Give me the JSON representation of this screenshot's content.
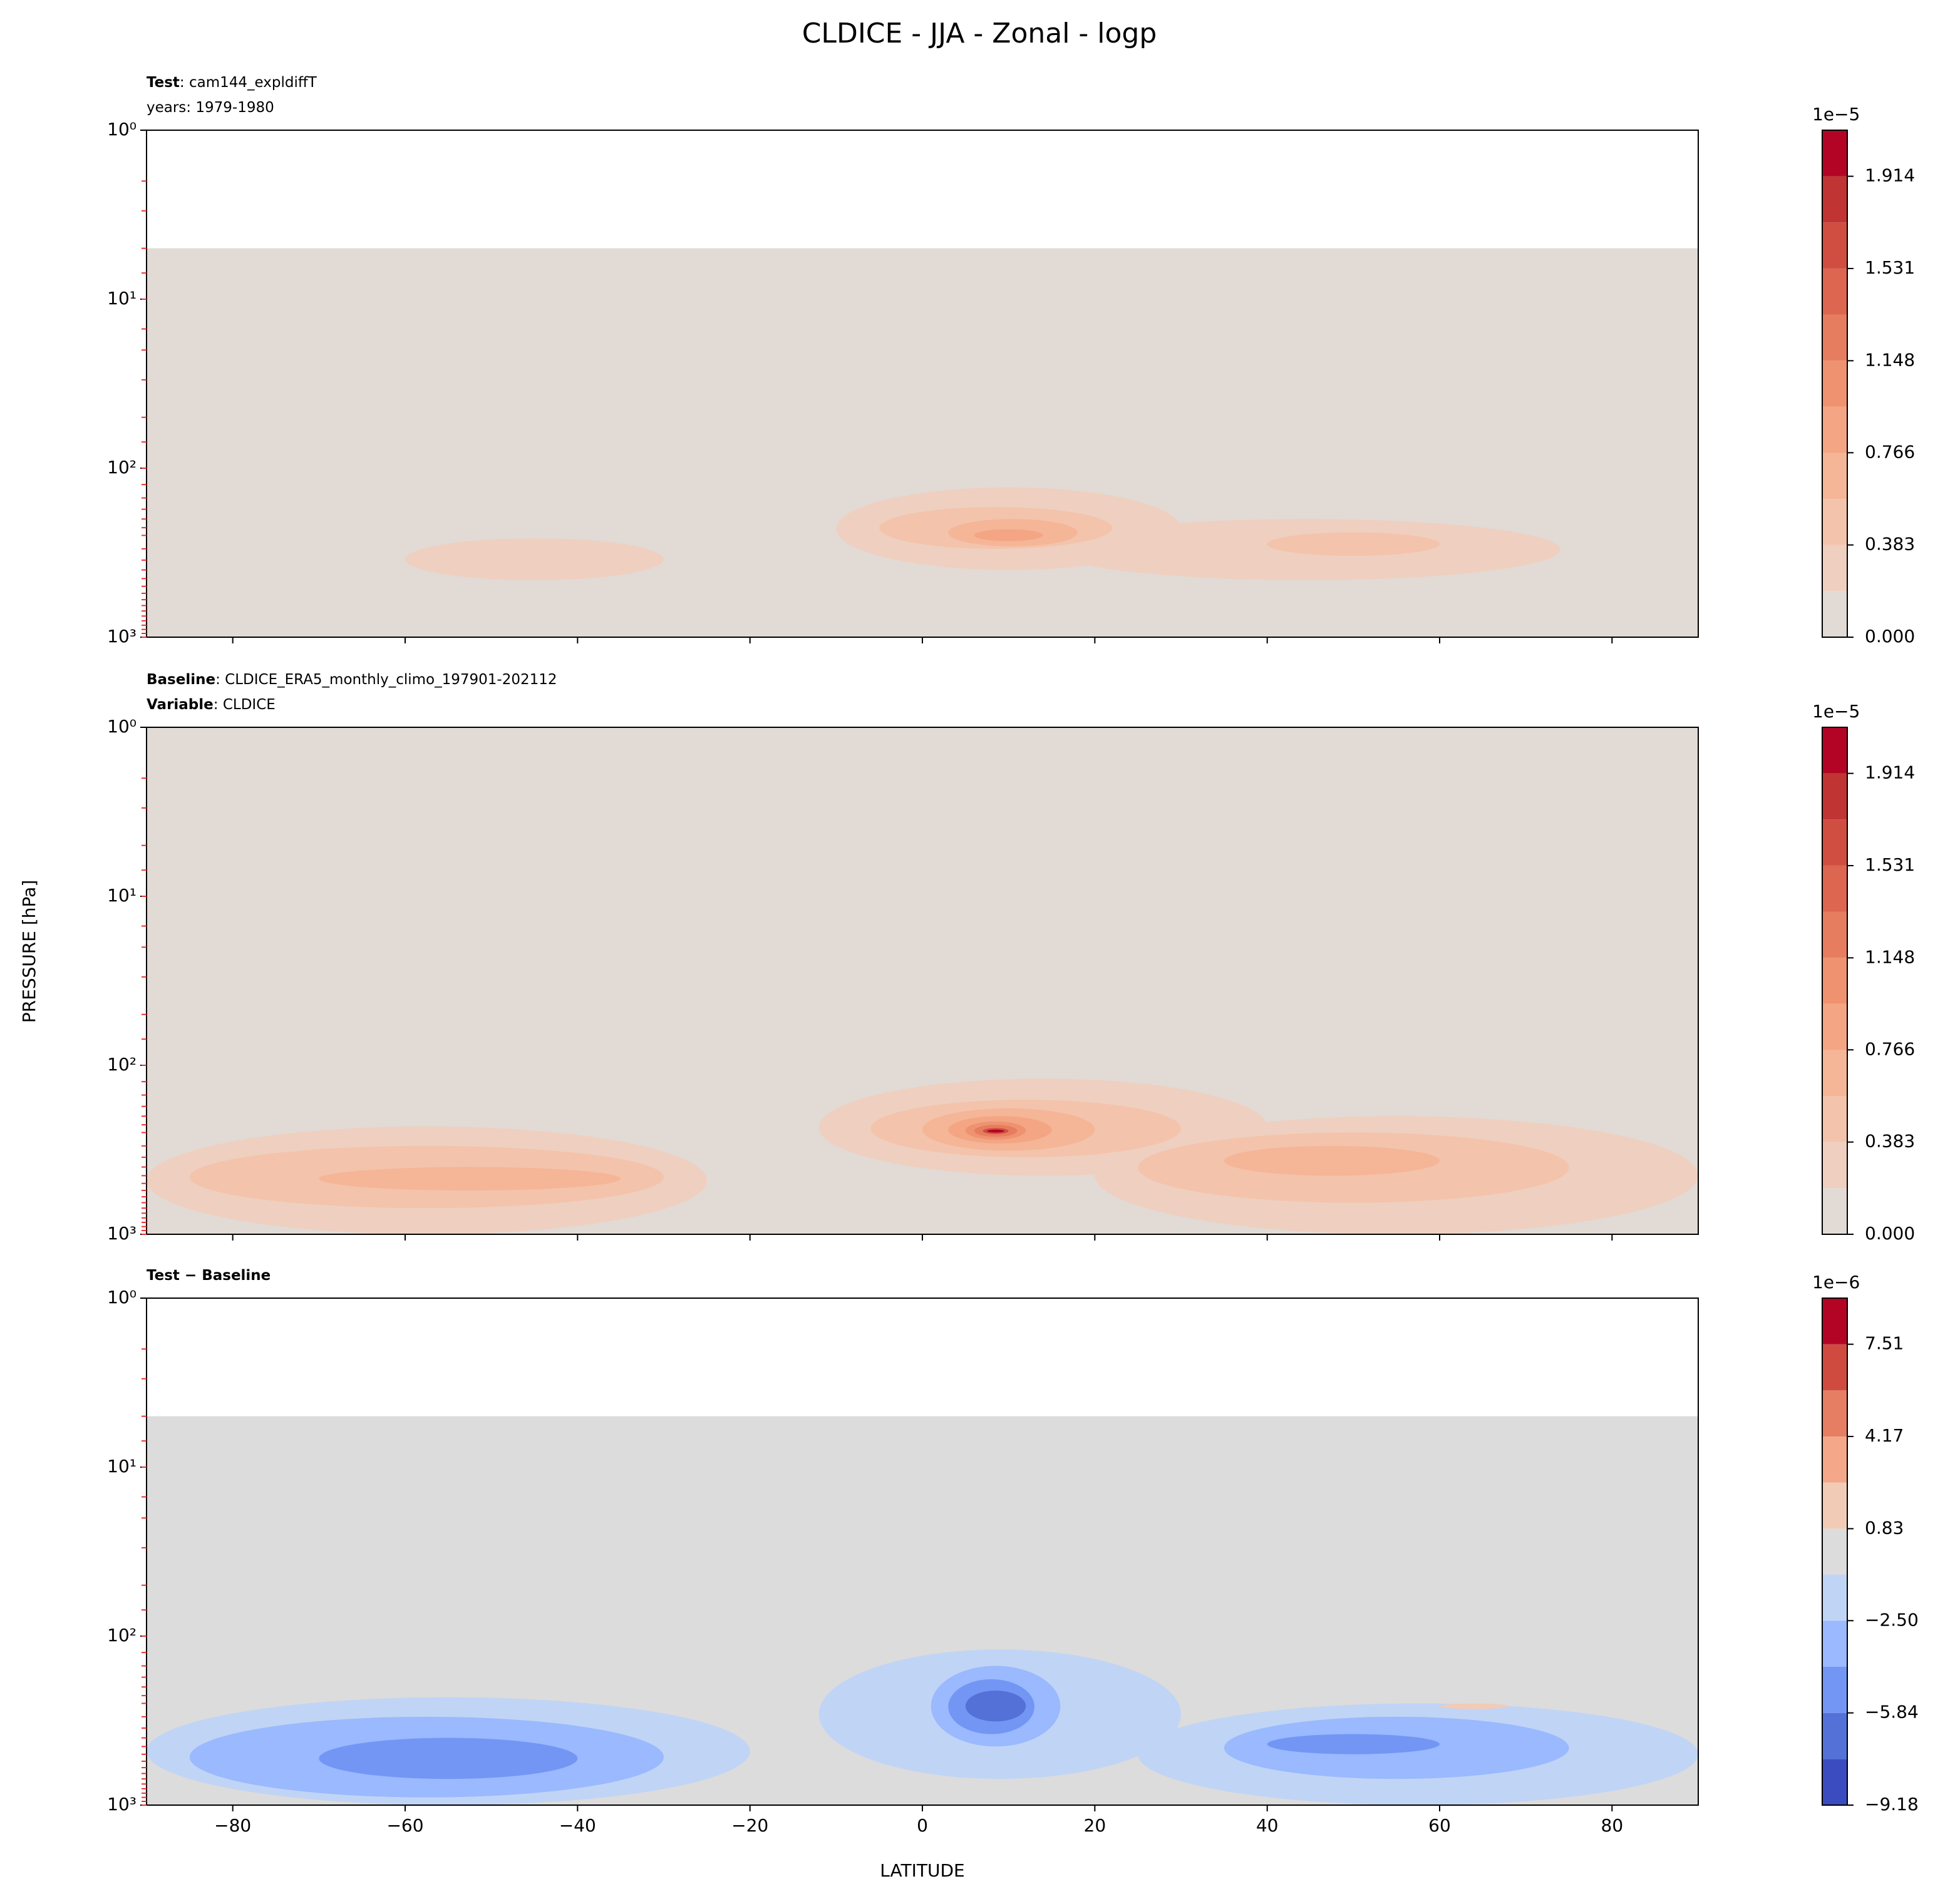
{
  "page": {
    "title": "CLDICE - JJA - Zonal - logp",
    "ylabel": "PRESSURE [hPa]"
  },
  "chart_data": [
    {
      "type": "contour",
      "subtitle": [
        {
          "bold": "Test",
          "text": ": cam144_expldiffT"
        },
        {
          "text": "years: 1979-1980"
        }
      ],
      "xlim": [
        -90,
        90
      ],
      "xticks": [
        -80,
        -60,
        -40,
        -20,
        0,
        20,
        40,
        60,
        80
      ],
      "xtick_labels": false,
      "ylim": [
        1,
        1000
      ],
      "y_inverted": true,
      "log_y": true,
      "yticks": [
        {
          "value": 1,
          "label": "10⁰"
        },
        {
          "value": 10,
          "label": "10¹"
        },
        {
          "value": 100,
          "label": "10²"
        },
        {
          "value": 1000,
          "label": "10³"
        }
      ],
      "yminorticks": [
        2,
        3,
        5,
        7,
        10,
        15,
        20,
        30,
        50,
        70,
        100,
        125,
        150,
        175,
        200,
        225,
        250,
        300,
        350,
        400,
        450,
        500,
        550,
        600,
        650,
        700,
        750,
        800,
        850,
        900,
        950,
        1000
      ],
      "data_top": 5,
      "colorbar": {
        "offset_label": "1e−5",
        "levels": [
          0,
          0.1914,
          0.3828,
          0.5742,
          0.7656,
          0.957,
          1.1484,
          1.3398,
          1.5312,
          1.7226,
          1.914,
          2.1054
        ],
        "colors": [
          "#e2dad5",
          "#efcfbf",
          "#f3c3ab",
          "#f5b597",
          "#f4a583",
          "#ef9270",
          "#e67d5f",
          "#dc6650",
          "#cf4e41",
          "#c03434",
          "#b40426"
        ],
        "ticks": [
          {
            "value": 0,
            "label": "0.000"
          },
          0.383,
          0.766,
          1.148,
          1.531,
          1.914
        ]
      },
      "regions": [
        {
          "level": 0.1914,
          "lat": [
            -60,
            -30
          ],
          "p": [
            260,
            460
          ]
        },
        {
          "level": 0.1914,
          "lat": [
            -10,
            30
          ],
          "p": [
            130,
            400
          ]
        },
        {
          "level": 0.1914,
          "lat": [
            15,
            74
          ],
          "p": [
            200,
            460
          ]
        },
        {
          "level": 0.3828,
          "lat": [
            -5,
            22
          ],
          "p": [
            170,
            300
          ]
        },
        {
          "level": 0.3828,
          "lat": [
            40,
            60
          ],
          "p": [
            240,
            330
          ]
        },
        {
          "level": 0.5742,
          "lat": [
            3,
            18
          ],
          "p": [
            200,
            290
          ]
        },
        {
          "level": 0.7656,
          "lat": [
            6,
            14
          ],
          "p": [
            230,
            270
          ]
        }
      ]
    },
    {
      "type": "contour",
      "subtitle": [
        {
          "bold": "Baseline",
          "text": ": CLDICE_ERA5_monthly_climo_197901-202112"
        },
        {
          "bold": "Variable",
          "text": ": CLDICE"
        }
      ],
      "xlim": [
        -90,
        90
      ],
      "xticks": [
        -80,
        -60,
        -40,
        -20,
        0,
        20,
        40,
        60,
        80
      ],
      "xtick_labels": false,
      "ylim": [
        1,
        1000
      ],
      "y_inverted": true,
      "log_y": true,
      "yticks": [
        {
          "value": 1,
          "label": "10⁰"
        },
        {
          "value": 10,
          "label": "10¹"
        },
        {
          "value": 100,
          "label": "10²"
        },
        {
          "value": 1000,
          "label": "10³"
        }
      ],
      "yminorticks": [
        2,
        3,
        5,
        7,
        10,
        15,
        20,
        30,
        50,
        70,
        100,
        125,
        150,
        175,
        200,
        225,
        250,
        300,
        350,
        400,
        450,
        500,
        550,
        600,
        650,
        700,
        750,
        800,
        850,
        900,
        950,
        1000
      ],
      "data_top": 1,
      "colorbar": {
        "offset_label": "1e−5",
        "levels": [
          0,
          0.1914,
          0.3828,
          0.5742,
          0.7656,
          0.957,
          1.1484,
          1.3398,
          1.5312,
          1.7226,
          1.914,
          2.1054
        ],
        "colors": [
          "#e2dad5",
          "#efcfbf",
          "#f3c3ab",
          "#f5b597",
          "#f4a583",
          "#ef9270",
          "#e67d5f",
          "#dc6650",
          "#cf4e41",
          "#c03434",
          "#b40426"
        ],
        "ticks": [
          {
            "value": 0,
            "label": "0.000"
          },
          0.383,
          0.766,
          1.148,
          1.531,
          1.914
        ]
      },
      "regions": [
        {
          "level": 0.1914,
          "lat": [
            -90,
            -25
          ],
          "p": [
            230,
            1000
          ]
        },
        {
          "level": 0.1914,
          "lat": [
            -12,
            40
          ],
          "p": [
            120,
            450
          ]
        },
        {
          "level": 0.1914,
          "lat": [
            20,
            90
          ],
          "p": [
            200,
            1000
          ]
        },
        {
          "level": 0.3828,
          "lat": [
            -85,
            -30
          ],
          "p": [
            300,
            700
          ]
        },
        {
          "level": 0.3828,
          "lat": [
            -6,
            30
          ],
          "p": [
            160,
            350
          ]
        },
        {
          "level": 0.3828,
          "lat": [
            25,
            75
          ],
          "p": [
            250,
            650
          ]
        },
        {
          "level": 0.5742,
          "lat": [
            -70,
            -35
          ],
          "p": [
            400,
            550
          ]
        },
        {
          "level": 0.5742,
          "lat": [
            35,
            60
          ],
          "p": [
            300,
            450
          ]
        },
        {
          "level": 0.5742,
          "lat": [
            0,
            20
          ],
          "p": [
            180,
            320
          ]
        },
        {
          "level": 0.7656,
          "lat": [
            3,
            15
          ],
          "p": [
            200,
            290
          ]
        },
        {
          "level": 0.957,
          "lat": [
            5,
            12
          ],
          "p": [
            215,
            275
          ]
        },
        {
          "level": 1.1484,
          "lat": [
            6,
            11
          ],
          "p": [
            225,
            265
          ]
        },
        {
          "level": 1.5312,
          "lat": [
            7,
            10
          ],
          "p": [
            235,
            255
          ]
        },
        {
          "level": 1.914,
          "lat": [
            7.5,
            9.5
          ],
          "p": [
            240,
            250
          ]
        }
      ]
    },
    {
      "type": "contour",
      "subtitle": [
        {
          "bold": "Test − Baseline"
        }
      ],
      "xlabel": "LATITUDE",
      "xlim": [
        -90,
        90
      ],
      "xticks": [
        {
          "value": -80,
          "label": "−80"
        },
        {
          "value": -60,
          "label": "−60"
        },
        {
          "value": -40,
          "label": "−40"
        },
        {
          "value": -20,
          "label": "−20"
        },
        0,
        20,
        40,
        60,
        80
      ],
      "xtick_labels": true,
      "ylim": [
        1,
        1000
      ],
      "y_inverted": true,
      "log_y": true,
      "yticks": [
        {
          "value": 1,
          "label": "10⁰"
        },
        {
          "value": 10,
          "label": "10¹"
        },
        {
          "value": 100,
          "label": "10²"
        },
        {
          "value": 1000,
          "label": "10³"
        }
      ],
      "yminorticks": [
        2,
        3,
        5,
        7,
        10,
        15,
        20,
        30,
        50,
        70,
        100,
        125,
        150,
        175,
        200,
        225,
        250,
        300,
        350,
        400,
        450,
        500,
        550,
        600,
        650,
        700,
        750,
        800,
        850,
        900,
        950,
        1000
      ],
      "data_top": 5,
      "colorbar": {
        "offset_label": "1e−6",
        "levels": [
          -9.18,
          -7.51,
          -5.84,
          -4.17,
          -2.5,
          -0.83,
          0.83,
          2.5,
          4.17,
          5.84,
          7.51,
          9.18
        ],
        "colors": [
          "#3b4cc0",
          "#5471d8",
          "#7396f5",
          "#9ab9fe",
          "#c0d4f5",
          "#dcdcdc",
          "#f2cbb7",
          "#f4a889",
          "#e57e63",
          "#cf4b40",
          "#b40426"
        ],
        "ticks": [
          {
            "value": -9.18,
            "label": "−9.18"
          },
          {
            "value": -5.84,
            "label": "−5.84"
          },
          {
            "value": -2.5,
            "label": "−2.50"
          },
          0.83,
          4.17,
          7.51
        ]
      },
      "regions": [
        {
          "level": -2.5,
          "lat": [
            -90,
            -20
          ],
          "p": [
            230,
            1000
          ]
        },
        {
          "level": -2.5,
          "lat": [
            -12,
            30
          ],
          "p": [
            120,
            700
          ]
        },
        {
          "level": -2.5,
          "lat": [
            25,
            90
          ],
          "p": [
            250,
            1000
          ]
        },
        {
          "level": -4.17,
          "lat": [
            -85,
            -30
          ],
          "p": [
            300,
            900
          ]
        },
        {
          "level": -4.17,
          "lat": [
            1,
            16
          ],
          "p": [
            150,
            450
          ]
        },
        {
          "level": -4.17,
          "lat": [
            35,
            75
          ],
          "p": [
            300,
            700
          ]
        },
        {
          "level": -5.84,
          "lat": [
            -70,
            -40
          ],
          "p": [
            400,
            700
          ]
        },
        {
          "level": -5.84,
          "lat": [
            3,
            13
          ],
          "p": [
            180,
            380
          ]
        },
        {
          "level": -5.84,
          "lat": [
            40,
            60
          ],
          "p": [
            380,
            500
          ]
        },
        {
          "level": -7.51,
          "lat": [
            5,
            12
          ],
          "p": [
            210,
            320
          ]
        },
        {
          "level": 0.83,
          "lat": [
            60,
            68
          ],
          "p": [
            250,
            270
          ]
        }
      ]
    }
  ]
}
